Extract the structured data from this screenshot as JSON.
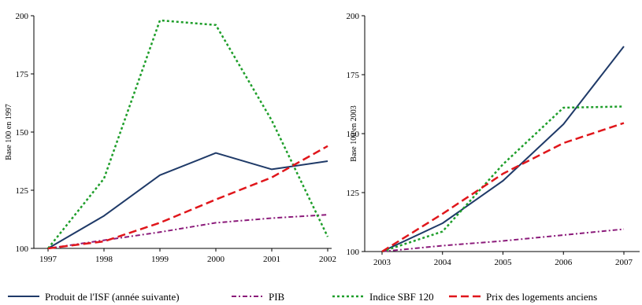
{
  "colors": {
    "isf": "#1f3a68",
    "pib": "#8b1a7a",
    "sbf": "#1e9e2a",
    "prix": "#e0161b"
  },
  "chart_data": [
    {
      "type": "line",
      "ylabel": "Base 100 en 1997",
      "categories": [
        "1997",
        "1998",
        "1999",
        "2000",
        "2001",
        "2002"
      ],
      "yticks": [
        "100",
        "125",
        "150",
        "175",
        "200"
      ],
      "ylim": [
        100,
        200
      ],
      "grid": false,
      "series": [
        {
          "key": "isf",
          "values": [
            100,
            114,
            131.5,
            141,
            134,
            137.5
          ]
        },
        {
          "key": "pib",
          "values": [
            100,
            103.5,
            107,
            111,
            113,
            114.5
          ]
        },
        {
          "key": "sbf",
          "values": [
            100,
            130,
            198,
            196,
            155,
            105
          ]
        },
        {
          "key": "prix",
          "values": [
            100,
            103,
            111,
            121,
            130.5,
            144
          ]
        }
      ]
    },
    {
      "type": "line",
      "ylabel": "Base 100 en 2003",
      "categories": [
        "2003",
        "2004",
        "2005",
        "2006",
        "2007"
      ],
      "yticks": [
        "100",
        "125",
        "150",
        "175",
        "200"
      ],
      "ylim": [
        100,
        200
      ],
      "grid": false,
      "series": [
        {
          "key": "isf",
          "values": [
            100,
            112,
            130,
            154,
            187
          ]
        },
        {
          "key": "pib",
          "values": [
            100,
            102.5,
            104.5,
            107,
            109.5
          ]
        },
        {
          "key": "sbf",
          "values": [
            100,
            108.5,
            137,
            161,
            161.5
          ]
        },
        {
          "key": "prix",
          "values": [
            100,
            116,
            133,
            146,
            154.5
          ]
        }
      ]
    }
  ],
  "legend": [
    {
      "key": "isf",
      "label": "Produit de l'ISF (année suivante)"
    },
    {
      "key": "pib",
      "label": "PIB"
    },
    {
      "key": "sbf",
      "label": "Indice SBF 120"
    },
    {
      "key": "prix",
      "label": "Prix des logements anciens"
    }
  ]
}
